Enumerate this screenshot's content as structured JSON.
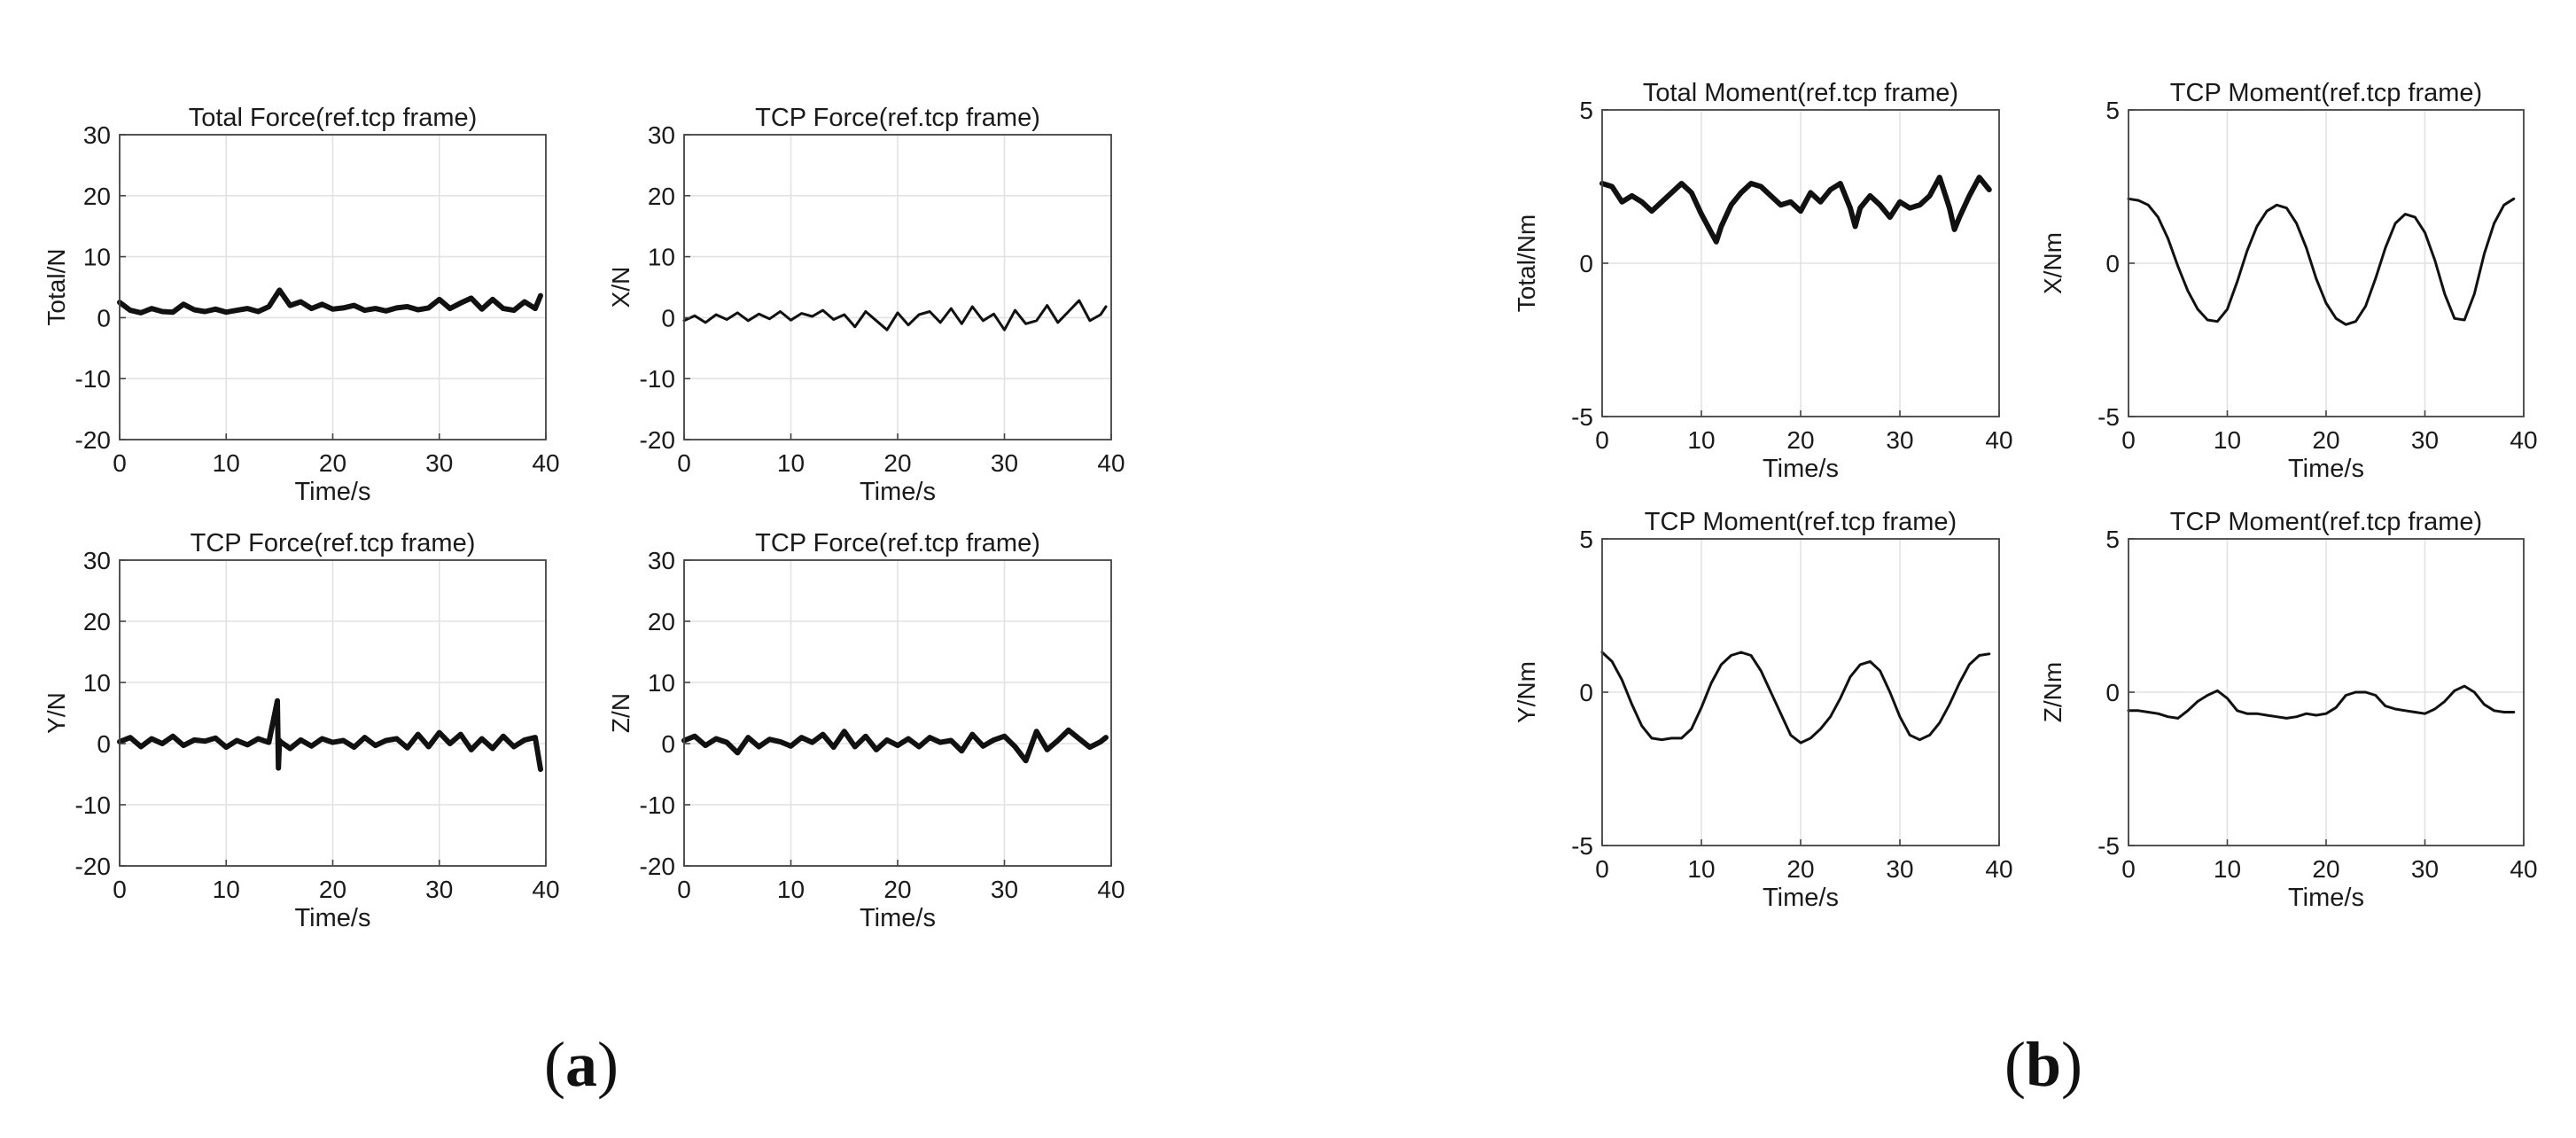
{
  "panel_labels": {
    "a": "a",
    "b": "b"
  },
  "chart_data": [
    {
      "type": "line",
      "group": "a",
      "title": "Total Force(ref.tcp frame)",
      "xlabel": "Time/s",
      "ylabel": "Total/N",
      "xlim": [
        0,
        40
      ],
      "ylim": [
        -20,
        30
      ],
      "xticks": [
        0,
        10,
        20,
        30,
        40
      ],
      "yticks": [
        -20,
        -10,
        0,
        10,
        20,
        30
      ],
      "grid": true,
      "line_weight": "bold",
      "x": [
        0,
        1,
        2,
        3,
        4,
        5,
        6,
        7,
        8,
        9,
        10,
        11,
        12,
        13,
        14,
        15,
        16,
        17,
        18,
        19,
        20,
        21,
        22,
        23,
        24,
        25,
        26,
        27,
        28,
        29,
        30,
        31,
        32,
        33,
        34,
        35,
        36,
        37,
        38,
        39,
        39.5
      ],
      "series": [
        {
          "values": [
            2.5,
            1.2,
            0.8,
            1.5,
            1.0,
            0.9,
            2.2,
            1.3,
            1.0,
            1.4,
            0.9,
            1.2,
            1.5,
            1.0,
            1.8,
            4.5,
            2.0,
            2.6,
            1.5,
            2.2,
            1.4,
            1.6,
            2.0,
            1.2,
            1.5,
            1.1,
            1.6,
            1.8,
            1.3,
            1.6,
            3.0,
            1.5,
            2.4,
            3.2,
            1.4,
            3.0,
            1.5,
            1.2,
            2.6,
            1.5,
            3.6
          ]
        }
      ]
    },
    {
      "type": "line",
      "group": "a",
      "title": "TCP Force(ref.tcp frame)",
      "xlabel": "Time/s",
      "ylabel": "X/N",
      "xlim": [
        0,
        40
      ],
      "ylim": [
        -20,
        30
      ],
      "xticks": [
        0,
        10,
        20,
        30,
        40
      ],
      "yticks": [
        -20,
        -10,
        0,
        10,
        20,
        30
      ],
      "grid": true,
      "line_weight": "normal",
      "x": [
        0,
        1,
        2,
        3,
        4,
        5,
        6,
        7,
        8,
        9,
        10,
        11,
        12,
        13,
        14,
        15,
        16,
        17,
        18,
        19,
        20,
        21,
        22,
        23,
        24,
        25,
        26,
        27,
        28,
        29,
        30,
        31,
        32,
        33,
        34,
        35,
        36,
        37,
        38,
        39,
        39.5
      ],
      "series": [
        {
          "values": [
            -0.5,
            0.3,
            -0.8,
            0.5,
            -0.3,
            0.8,
            -0.5,
            0.6,
            -0.2,
            1.0,
            -0.4,
            0.7,
            0.2,
            1.2,
            -0.3,
            0.5,
            -1.5,
            1.0,
            -0.5,
            -2.0,
            0.8,
            -1.2,
            0.5,
            1.0,
            -0.8,
            1.5,
            -1.0,
            1.8,
            -0.5,
            0.6,
            -2.0,
            1.2,
            -1.0,
            -0.5,
            2.0,
            -0.8,
            1.0,
            2.8,
            -0.5,
            0.5,
            1.8
          ]
        }
      ]
    },
    {
      "type": "line",
      "group": "a",
      "title": "TCP Force(ref.tcp frame)",
      "xlabel": "Time/s",
      "ylabel": "Y/N",
      "xlim": [
        0,
        40
      ],
      "ylim": [
        -20,
        30
      ],
      "xticks": [
        0,
        10,
        20,
        30,
        40
      ],
      "yticks": [
        -20,
        -10,
        0,
        10,
        20,
        30
      ],
      "grid": true,
      "line_weight": "bold",
      "x": [
        0,
        1,
        2,
        3,
        4,
        5,
        6,
        7,
        8,
        9,
        10,
        11,
        12,
        13,
        14,
        14.8,
        14.9,
        15.0,
        15.1,
        16,
        17,
        18,
        19,
        20,
        21,
        22,
        23,
        24,
        25,
        26,
        27,
        28,
        29,
        30,
        31,
        32,
        33,
        34,
        35,
        36,
        37,
        38,
        39,
        39.5
      ],
      "series": [
        {
          "values": [
            0.3,
            1.0,
            -0.5,
            0.8,
            0.0,
            1.2,
            -0.3,
            0.6,
            0.4,
            0.9,
            -0.6,
            0.5,
            -0.2,
            0.8,
            0.2,
            7.0,
            -4.0,
            0.5,
            0.3,
            -0.8,
            0.6,
            -0.4,
            0.8,
            0.2,
            0.5,
            -0.6,
            1.0,
            -0.3,
            0.5,
            0.8,
            -0.7,
            1.5,
            -0.5,
            1.8,
            0.0,
            1.5,
            -1.0,
            0.8,
            -0.8,
            1.2,
            -0.5,
            0.6,
            1.0,
            -4.2
          ]
        }
      ]
    },
    {
      "type": "line",
      "group": "a",
      "title": "TCP Force(ref.tcp frame)",
      "xlabel": "Time/s",
      "ylabel": "Z/N",
      "xlim": [
        0,
        40
      ],
      "ylim": [
        -20,
        30
      ],
      "xticks": [
        0,
        10,
        20,
        30,
        40
      ],
      "yticks": [
        -20,
        -10,
        0,
        10,
        20,
        30
      ],
      "grid": true,
      "line_weight": "bold",
      "x": [
        0,
        1,
        2,
        3,
        4,
        5,
        6,
        7,
        8,
        9,
        10,
        11,
        12,
        13,
        14,
        15,
        16,
        17,
        18,
        19,
        20,
        21,
        22,
        23,
        24,
        25,
        26,
        27,
        28,
        29,
        30,
        31,
        32,
        33,
        34,
        35,
        36,
        37,
        38,
        39,
        39.5
      ],
      "series": [
        {
          "values": [
            0.5,
            1.2,
            -0.3,
            0.8,
            0.2,
            -1.5,
            1.0,
            -0.5,
            0.7,
            0.3,
            -0.4,
            1.0,
            0.2,
            1.5,
            -0.6,
            2.0,
            -0.5,
            1.2,
            -1.0,
            0.6,
            -0.3,
            0.8,
            -0.5,
            1.0,
            0.2,
            0.5,
            -1.2,
            1.5,
            -0.4,
            0.6,
            1.2,
            -0.5,
            -2.8,
            2.0,
            -1.0,
            0.5,
            2.2,
            0.8,
            -0.6,
            0.3,
            1.0
          ]
        }
      ]
    },
    {
      "type": "line",
      "group": "b",
      "title": "Total Moment(ref.tcp frame)",
      "xlabel": "Time/s",
      "ylabel": "Total/Nm",
      "xlim": [
        0,
        40
      ],
      "ylim": [
        -5,
        5
      ],
      "xticks": [
        0,
        10,
        20,
        30,
        40
      ],
      "yticks": [
        -5,
        0,
        5
      ],
      "grid": true,
      "line_weight": "bold",
      "x": [
        0,
        1,
        2,
        3,
        4,
        5,
        6,
        7,
        8,
        9,
        10,
        11,
        11.5,
        12,
        13,
        14,
        15,
        16,
        17,
        18,
        19,
        20,
        21,
        22,
        23,
        24,
        25,
        25.5,
        26,
        27,
        28,
        29,
        30,
        31,
        32,
        33,
        34,
        35,
        35.5,
        36,
        37,
        38,
        39
      ],
      "series": [
        {
          "values": [
            2.6,
            2.5,
            2.0,
            2.2,
            2.0,
            1.7,
            2.0,
            2.3,
            2.6,
            2.3,
            1.6,
            1.0,
            0.7,
            1.2,
            1.9,
            2.3,
            2.6,
            2.5,
            2.2,
            1.9,
            2.0,
            1.7,
            2.3,
            2.0,
            2.4,
            2.6,
            1.8,
            1.2,
            1.8,
            2.2,
            1.9,
            1.5,
            2.0,
            1.8,
            1.9,
            2.2,
            2.8,
            1.8,
            1.1,
            1.5,
            2.2,
            2.8,
            2.4
          ]
        }
      ]
    },
    {
      "type": "line",
      "group": "b",
      "title": "TCP Moment(ref.tcp frame)",
      "xlabel": "Time/s",
      "ylabel": "X/Nm",
      "xlim": [
        0,
        40
      ],
      "ylim": [
        -5,
        5
      ],
      "xticks": [
        0,
        10,
        20,
        30,
        40
      ],
      "yticks": [
        -5,
        0,
        5
      ],
      "grid": true,
      "line_weight": "normal",
      "x": [
        0,
        1,
        2,
        3,
        4,
        5,
        6,
        7,
        8,
        9,
        10,
        11,
        12,
        13,
        14,
        15,
        16,
        17,
        18,
        19,
        20,
        21,
        22,
        23,
        24,
        25,
        26,
        27,
        28,
        29,
        30,
        31,
        32,
        33,
        34,
        35,
        36,
        37,
        38,
        39
      ],
      "series": [
        {
          "values": [
            2.1,
            2.05,
            1.9,
            1.5,
            0.8,
            -0.1,
            -0.9,
            -1.5,
            -1.85,
            -1.9,
            -1.5,
            -0.6,
            0.4,
            1.2,
            1.7,
            1.9,
            1.8,
            1.3,
            0.5,
            -0.5,
            -1.3,
            -1.8,
            -2.0,
            -1.9,
            -1.4,
            -0.5,
            0.5,
            1.3,
            1.6,
            1.5,
            1.0,
            0.1,
            -1.0,
            -1.8,
            -1.85,
            -1.0,
            0.3,
            1.3,
            1.9,
            2.1
          ]
        }
      ]
    },
    {
      "type": "line",
      "group": "b",
      "title": "TCP Moment(ref.tcp frame)",
      "xlabel": "Time/s",
      "ylabel": "Y/Nm",
      "xlim": [
        0,
        40
      ],
      "ylim": [
        -5,
        5
      ],
      "xticks": [
        0,
        10,
        20,
        30,
        40
      ],
      "yticks": [
        -5,
        0,
        5
      ],
      "grid": true,
      "line_weight": "normal",
      "x": [
        0,
        1,
        2,
        3,
        4,
        5,
        6,
        7,
        8,
        9,
        10,
        11,
        12,
        13,
        14,
        15,
        16,
        17,
        18,
        19,
        20,
        21,
        22,
        23,
        24,
        25,
        26,
        27,
        28,
        29,
        30,
        31,
        32,
        33,
        34,
        35,
        36,
        37,
        38,
        39
      ],
      "series": [
        {
          "values": [
            1.3,
            1.0,
            0.4,
            -0.4,
            -1.1,
            -1.5,
            -1.55,
            -1.5,
            -1.5,
            -1.2,
            -0.5,
            0.3,
            0.9,
            1.2,
            1.3,
            1.2,
            0.7,
            0.0,
            -0.7,
            -1.4,
            -1.65,
            -1.5,
            -1.2,
            -0.8,
            -0.2,
            0.5,
            0.9,
            1.0,
            0.7,
            0.0,
            -0.8,
            -1.4,
            -1.55,
            -1.4,
            -1.0,
            -0.4,
            0.3,
            0.9,
            1.2,
            1.25
          ]
        }
      ]
    },
    {
      "type": "line",
      "group": "b",
      "title": "TCP Moment(ref.tcp frame)",
      "xlabel": "Time/s",
      "ylabel": "Z/Nm",
      "xlim": [
        0,
        40
      ],
      "ylim": [
        -5,
        5
      ],
      "xticks": [
        0,
        10,
        20,
        30,
        40
      ],
      "yticks": [
        -5,
        0,
        5
      ],
      "grid": true,
      "line_weight": "normal",
      "x": [
        0,
        1,
        2,
        3,
        4,
        5,
        6,
        7,
        8,
        9,
        10,
        11,
        12,
        13,
        14,
        15,
        16,
        17,
        18,
        19,
        20,
        21,
        22,
        23,
        24,
        25,
        26,
        27,
        28,
        29,
        30,
        31,
        32,
        33,
        34,
        35,
        36,
        37,
        38,
        39
      ],
      "series": [
        {
          "values": [
            -0.6,
            -0.6,
            -0.65,
            -0.7,
            -0.8,
            -0.85,
            -0.6,
            -0.3,
            -0.1,
            0.05,
            -0.2,
            -0.6,
            -0.7,
            -0.7,
            -0.75,
            -0.8,
            -0.85,
            -0.8,
            -0.7,
            -0.75,
            -0.7,
            -0.5,
            -0.1,
            0.0,
            0.0,
            -0.1,
            -0.45,
            -0.55,
            -0.6,
            -0.65,
            -0.7,
            -0.55,
            -0.3,
            0.05,
            0.2,
            0.0,
            -0.4,
            -0.6,
            -0.65,
            -0.65
          ]
        }
      ]
    }
  ]
}
